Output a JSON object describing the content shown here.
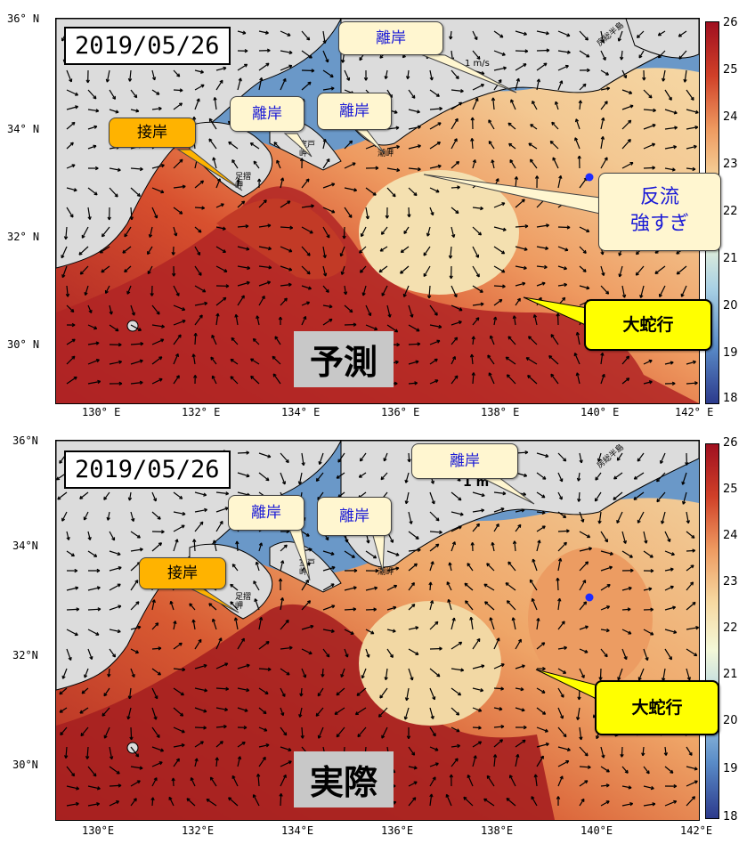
{
  "colorbar": {
    "min": 18,
    "max": 26,
    "ticks": [
      "18",
      "19",
      "20",
      "21",
      "22",
      "23",
      "24",
      "25",
      "26"
    ]
  },
  "panels": [
    {
      "date": "2019/05/26",
      "label": "予測",
      "lat_ticks": [
        "36° N",
        "34° N",
        "32° N",
        "30° N"
      ],
      "lon_ticks": [
        "130° E",
        "132° E",
        "134° E",
        "136° E",
        "138° E",
        "140° E",
        "142° E"
      ],
      "scale_label": "1 m/s",
      "places": {
        "ashizuri": "足摺岬",
        "muroto": "室戸岬",
        "shiono": "潮岬",
        "boso": "房総半島"
      },
      "callouts": {
        "setsugan": "接岸",
        "rigan1": "離岸",
        "rigan2": "離岸",
        "rigan3": "離岸",
        "hanryu_line1": "反流",
        "hanryu_line2": "強すぎ",
        "daidako": "大蛇行"
      }
    },
    {
      "date": "2019/05/26",
      "label": "実際",
      "lat_ticks": [
        "36°N",
        "34°N",
        "32°N",
        "30°N"
      ],
      "lon_ticks": [
        "130°E",
        "132°E",
        "134°E",
        "136°E",
        "138°E",
        "140°E",
        "142°E"
      ],
      "scale_label": "1 m",
      "places": {
        "ashizuri": "足摺岬",
        "muroto": "室戸岬",
        "shiono": "潮岬",
        "boso": "房総半島"
      },
      "callouts": {
        "setsugan": "接岸",
        "rigan1": "離岸",
        "rigan2": "離岸",
        "rigan3": "離岸",
        "daidako": "大蛇行"
      }
    }
  ],
  "colors": {
    "warm": "#c8321e",
    "mid": "#f0c890",
    "cool": "#5a8cc8",
    "land": "#dcdcdc"
  }
}
